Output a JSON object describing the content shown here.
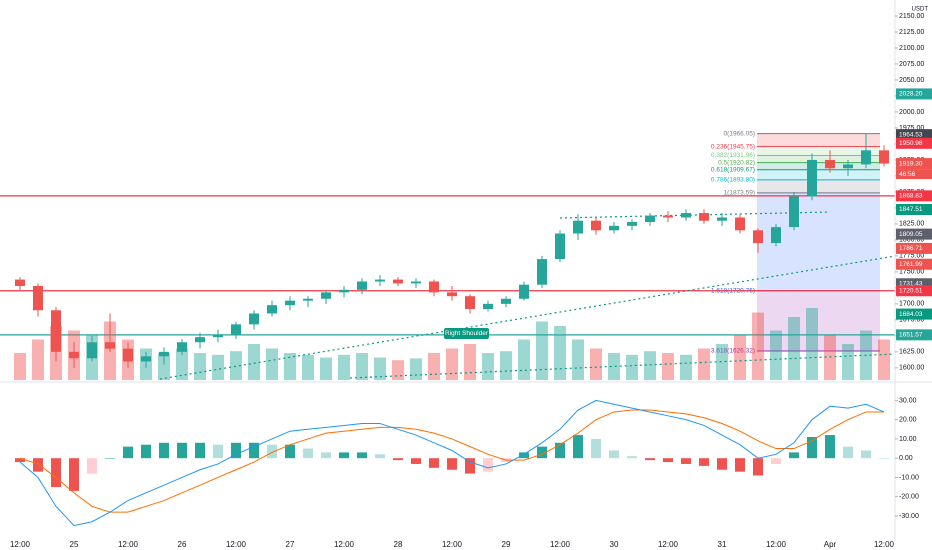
{
  "chart_data": [
    {
      "type": "candlestick",
      "currency": "USDT",
      "categories": [
        "12:00",
        null,
        null,
        "25",
        null,
        null,
        "12:00",
        null,
        null,
        "26",
        null,
        null,
        "12:00",
        null,
        null,
        "27",
        null,
        null,
        "12:00",
        null,
        null,
        "28",
        null,
        null,
        "12:00",
        null,
        null,
        "29",
        null,
        null,
        "12:00",
        null,
        null,
        "30",
        null,
        null,
        "12:00",
        null,
        null,
        "31",
        null,
        null,
        "12:00",
        null,
        null,
        "Apr",
        null,
        null,
        "12:00"
      ],
      "open": [
        1738,
        1728,
        1690,
        1625,
        1615,
        1640,
        1630,
        1610,
        1618,
        1625,
        1640,
        1648,
        1652,
        1668,
        1685,
        1698,
        1705,
        1708,
        1718,
        1722,
        1735,
        1738,
        1732,
        1735,
        1718,
        1712,
        1692,
        1700,
        1708,
        1730,
        1770,
        1810,
        1830,
        1815,
        1822,
        1828,
        1838,
        1835,
        1842,
        1830,
        1835,
        1815,
        1795,
        1820,
        1868,
        1925,
        1912,
        1918,
        1940
      ],
      "high": [
        1742,
        1732,
        1695,
        1640,
        1650,
        1685,
        1640,
        1625,
        1632,
        1645,
        1655,
        1660,
        1672,
        1690,
        1705,
        1712,
        1712,
        1722,
        1728,
        1740,
        1745,
        1742,
        1740,
        1738,
        1728,
        1715,
        1705,
        1712,
        1735,
        1775,
        1815,
        1840,
        1835,
        1828,
        1832,
        1842,
        1845,
        1848,
        1848,
        1842,
        1840,
        1818,
        1825,
        1875,
        1935,
        1940,
        1925,
        1966,
        1948
      ],
      "low": [
        1720,
        1680,
        1610,
        1600,
        1610,
        1625,
        1600,
        1600,
        1605,
        1620,
        1630,
        1640,
        1645,
        1660,
        1680,
        1690,
        1695,
        1700,
        1710,
        1715,
        1728,
        1728,
        1725,
        1712,
        1705,
        1685,
        1688,
        1695,
        1705,
        1725,
        1765,
        1800,
        1808,
        1810,
        1815,
        1822,
        1828,
        1830,
        1825,
        1822,
        1810,
        1780,
        1790,
        1815,
        1862,
        1905,
        1900,
        1912,
        1915
      ],
      "close": [
        1728,
        1690,
        1625,
        1615,
        1640,
        1630,
        1610,
        1618,
        1625,
        1640,
        1648,
        1652,
        1668,
        1685,
        1698,
        1705,
        1708,
        1718,
        1722,
        1735,
        1738,
        1732,
        1735,
        1718,
        1712,
        1692,
        1700,
        1708,
        1730,
        1770,
        1810,
        1830,
        1815,
        1822,
        1828,
        1838,
        1835,
        1842,
        1830,
        1835,
        1815,
        1795,
        1820,
        1868,
        1925,
        1912,
        1918,
        1940,
        1919.3
      ],
      "volume": [
        30,
        45,
        60,
        55,
        50,
        65,
        45,
        35,
        30,
        35,
        30,
        28,
        32,
        40,
        35,
        30,
        28,
        25,
        28,
        30,
        25,
        22,
        24,
        30,
        35,
        40,
        30,
        32,
        45,
        65,
        60,
        45,
        35,
        30,
        28,
        32,
        30,
        28,
        35,
        40,
        50,
        75,
        55,
        70,
        80,
        50,
        40,
        55,
        45
      ],
      "vlim": [
        0,
        100
      ],
      "up_color": "#26a69a",
      "down_color": "#ef5350",
      "ylim": [
        1581,
        2175
      ],
      "yticks": [
        {
          "value": 1600,
          "label": "1600.00"
        },
        {
          "value": 1625,
          "label": "1625.00"
        },
        {
          "value": 1650,
          "label": "1650.00"
        },
        {
          "value": 1675,
          "label": "1675.00"
        },
        {
          "value": 1700,
          "label": "1700.00"
        },
        {
          "value": 1725,
          "label": "1725.00"
        },
        {
          "value": 1750,
          "label": "1750.00"
        },
        {
          "value": 1775,
          "label": "1775.00"
        },
        {
          "value": 1800,
          "label": "1800.00"
        },
        {
          "value": 1825,
          "label": "1825.00"
        },
        {
          "value": 1850,
          "label": "1850.00"
        },
        {
          "value": 1875,
          "label": "1875.00"
        },
        {
          "value": 1900,
          "label": "1900.00"
        },
        {
          "value": 1925,
          "label": "1925.00"
        },
        {
          "value": 1950,
          "label": "1950.00"
        },
        {
          "value": 1975,
          "label": "1975.00"
        },
        {
          "value": 2000,
          "label": "2000.00"
        },
        {
          "value": 2025,
          "label": "2025.00"
        },
        {
          "value": 2050,
          "label": "2050.00"
        },
        {
          "value": 2075,
          "label": "2075.00"
        },
        {
          "value": 2100,
          "label": "2100.00"
        },
        {
          "value": 2125,
          "label": "2125.00"
        },
        {
          "value": 2150,
          "label": "2150.00"
        }
      ],
      "price_labels": [
        {
          "value": 2028.2,
          "label": "2028.20",
          "color": "#26a69a"
        },
        {
          "value": 1964.53,
          "label": "1964.53",
          "color": "#434651"
        },
        {
          "value": 1950.98,
          "label": "1950.98",
          "color": "#f23645"
        },
        {
          "value": 1919.3,
          "label": "1919.30",
          "color": "#ef5350"
        },
        {
          "value": 1868.83,
          "label": "1868.83",
          "color": "#f23645",
          "line": true
        },
        {
          "value": 1847.51,
          "label": "1847.51",
          "color": "#089981"
        },
        {
          "value": 1809.05,
          "label": "1809.05",
          "color": "#5d606b"
        },
        {
          "value": 1786.71,
          "label": "1786.71",
          "color": "#ef5350"
        },
        {
          "value": 1761.99,
          "label": "1761.99",
          "color": "#ef5350"
        },
        {
          "value": 1731.43,
          "label": "1731.43",
          "color": "#5d606b"
        },
        {
          "value": 1720.51,
          "label": "1720.51",
          "color": "#f23645",
          "line": true
        },
        {
          "value": 1684.03,
          "label": "1684.03",
          "color": "#089981"
        },
        {
          "value": 1651.57,
          "label": "1651.57",
          "color": "#26a69a",
          "line": true
        }
      ],
      "countdown": "46:56",
      "fib_levels": [
        {
          "value": 1966.05,
          "label": "0(1966.05)",
          "color": "#787b86"
        },
        {
          "value": 1945.75,
          "label": "0.236(1945.75)",
          "color": "#f23645"
        },
        {
          "value": 1931.96,
          "label": "0.382(1931.96)",
          "color": "#81c784"
        },
        {
          "value": 1920.82,
          "label": "0.5(1920.82)",
          "color": "#4caf50"
        },
        {
          "value": 1909.67,
          "label": "0.618(1909.67)",
          "color": "#089981"
        },
        {
          "value": 1893.8,
          "label": "0.786(1893.80)",
          "color": "#00bcd4"
        },
        {
          "value": 1873.59,
          "label": "1(1873.59)",
          "color": "#787b86"
        },
        {
          "value": 1720.76,
          "label": "1.618(1720.76)",
          "color": "#2962ff"
        },
        {
          "value": 1626.32,
          "label": "3.618(1626.32)",
          "color": "#9c27b0"
        }
      ],
      "annotation": "Right Shoulder"
    },
    {
      "type": "macd",
      "macd": [
        -2,
        -10,
        -25,
        -35,
        -33,
        -28,
        -22,
        -18,
        -14,
        -10,
        -6,
        -3,
        2,
        6,
        10,
        14,
        15,
        16,
        17,
        18,
        18,
        15,
        12,
        8,
        4,
        -2,
        -5,
        -3,
        2,
        8,
        15,
        25,
        30,
        28,
        26,
        24,
        22,
        20,
        17,
        12,
        7,
        0,
        2,
        8,
        20,
        27,
        26,
        28,
        24
      ],
      "signal": [
        0,
        -3,
        -10,
        -18,
        -25,
        -28,
        -28,
        -25,
        -22,
        -18,
        -14,
        -10,
        -6,
        -2,
        3,
        7,
        10,
        13,
        14,
        15,
        16,
        16,
        15,
        13,
        10,
        6,
        2,
        -1,
        -1,
        2,
        7,
        13,
        20,
        24,
        25,
        25,
        24,
        23,
        21,
        18,
        14,
        9,
        5,
        5,
        9,
        15,
        20,
        24,
        24
      ],
      "histogram": [
        -2,
        -7,
        -15,
        -17,
        -8,
        0,
        6,
        7,
        8,
        8,
        8,
        7,
        8,
        8,
        7,
        7,
        5,
        3,
        3,
        3,
        2,
        -1,
        -3,
        -5,
        -6,
        -8,
        -7,
        -2,
        3,
        6,
        8,
        12,
        10,
        4,
        1,
        -1,
        -2,
        -3,
        -4,
        -6,
        -7,
        -9,
        -3,
        3,
        11,
        12,
        6,
        4,
        0
      ],
      "macd_color": "#2196f3",
      "signal_color": "#ff6d00",
      "hist_colors": [
        "#26a69a",
        "#b2dfdb",
        "#ef5350",
        "#ffcdd2"
      ],
      "ylim": [
        -43,
        38
      ],
      "yticks": [
        {
          "value": 30,
          "label": "30.00"
        },
        {
          "value": 20,
          "label": "20.00"
        },
        {
          "value": 10,
          "label": "10.00"
        },
        {
          "value": 0,
          "label": "0.00"
        },
        {
          "value": -10,
          "label": "-10.00"
        },
        {
          "value": -20,
          "label": "-20.00"
        },
        {
          "value": -30,
          "label": "-30.00"
        }
      ]
    }
  ]
}
